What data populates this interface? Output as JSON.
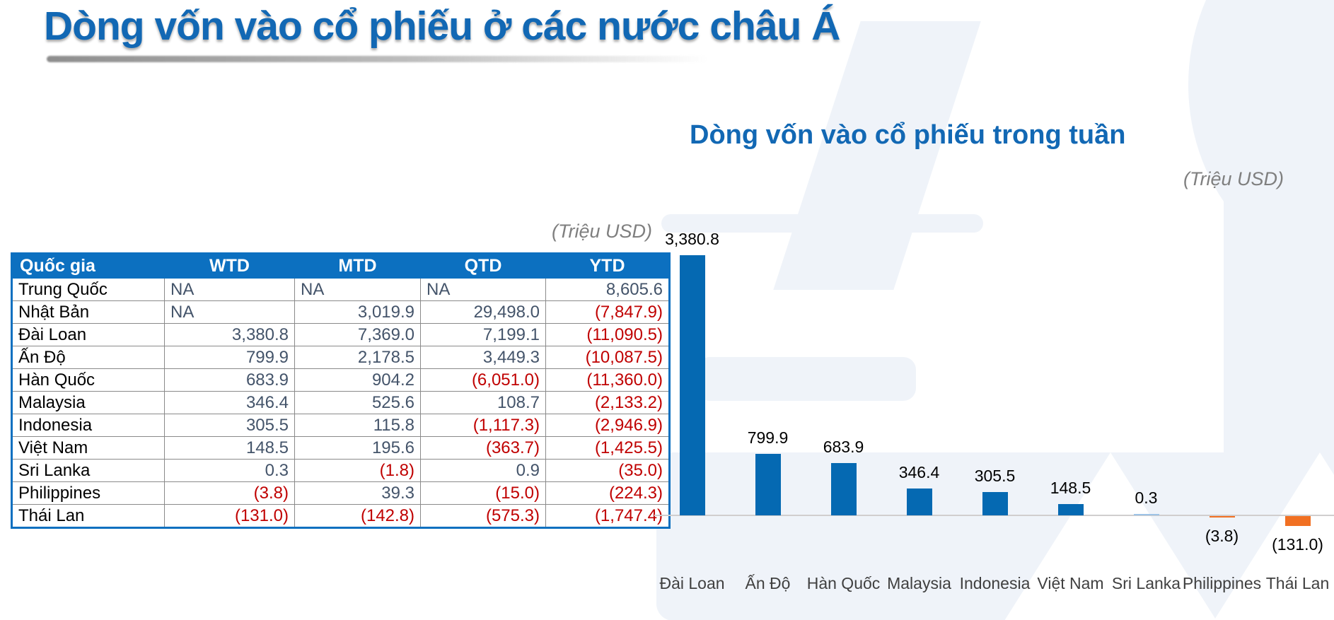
{
  "page_title": "Dòng vốn vào cổ phiếu ở các nước châu Á",
  "colors": {
    "title_blue": "#1268B4",
    "table_header_bg": "#0C70C0",
    "value_positive": "#44546A",
    "value_negative_red": "#C00000",
    "bar_positive": "#0569B2",
    "bar_negative": "#F17022",
    "bar_tiny": "#9DC3E6",
    "axis_line": "#D0CECE",
    "watermark": "#EFF3F9",
    "unit_label_gray": "#7F7F7F"
  },
  "table": {
    "unit_label": "(Triệu USD)",
    "columns": [
      "Quốc gia",
      "WTD",
      "MTD",
      "QTD",
      "YTD"
    ],
    "rows": [
      {
        "country": "Trung Quốc",
        "wtd": "NA",
        "mtd": "NA",
        "qtd": "NA",
        "ytd": "8,605.6"
      },
      {
        "country": "Nhật Bản",
        "wtd": "NA",
        "mtd": "3,019.9",
        "qtd": "29,498.0",
        "ytd": "(7,847.9)"
      },
      {
        "country": "Đài Loan",
        "wtd": "3,380.8",
        "mtd": "7,369.0",
        "qtd": "7,199.1",
        "ytd": "(11,090.5)"
      },
      {
        "country": "Ấn Độ",
        "wtd": "799.9",
        "mtd": "2,178.5",
        "qtd": "3,449.3",
        "ytd": "(10,087.5)"
      },
      {
        "country": "Hàn Quốc",
        "wtd": "683.9",
        "mtd": "904.2",
        "qtd": "(6,051.0)",
        "ytd": "(11,360.0)"
      },
      {
        "country": "Malaysia",
        "wtd": "346.4",
        "mtd": "525.6",
        "qtd": "108.7",
        "ytd": "(2,133.2)"
      },
      {
        "country": "Indonesia",
        "wtd": "305.5",
        "mtd": "115.8",
        "qtd": "(1,117.3)",
        "ytd": "(2,946.9)"
      },
      {
        "country": "Việt Nam",
        "wtd": "148.5",
        "mtd": "195.6",
        "qtd": "(363.7)",
        "ytd": "(1,425.5)"
      },
      {
        "country": "Sri Lanka",
        "wtd": "0.3",
        "mtd": "(1.8)",
        "qtd": "0.9",
        "ytd": "(35.0)"
      },
      {
        "country": "Philippines",
        "wtd": "(3.8)",
        "mtd": "39.3",
        "qtd": "(15.0)",
        "ytd": "(224.3)"
      },
      {
        "country": "Thái Lan",
        "wtd": "(131.0)",
        "mtd": "(142.8)",
        "qtd": "(575.3)",
        "ytd": "(1,747.4)"
      }
    ]
  },
  "chart_data": {
    "type": "bar",
    "title": "Dòng vốn vào cổ phiếu trong tuần",
    "unit_label": "(Triệu USD)",
    "categories": [
      "Đài Loan",
      "Ấn Độ",
      "Hàn Quốc",
      "Malaysia",
      "Indonesia",
      "Việt Nam",
      "Sri Lanka",
      "Philippines",
      "Thái Lan"
    ],
    "values": [
      3380.8,
      799.9,
      683.9,
      346.4,
      305.5,
      148.5,
      0.3,
      -3.8,
      -131.0
    ],
    "value_labels": [
      "3,380.8",
      "799.9",
      "683.9",
      "346.4",
      "305.5",
      "148.5",
      "0.3",
      "(3.8)",
      "(131.0)"
    ],
    "ylim": [
      -200,
      3600
    ],
    "grid": false,
    "legend": "none",
    "xlabel": "",
    "ylabel": ""
  }
}
